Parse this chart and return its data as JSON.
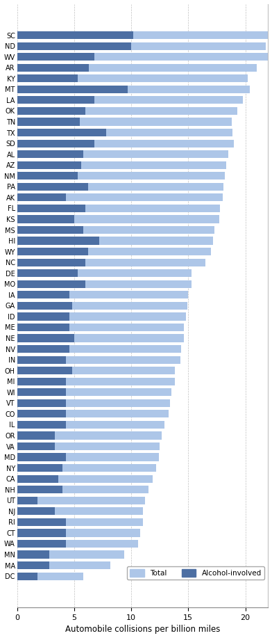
{
  "states": [
    "SC",
    "ND",
    "WV",
    "AR",
    "KY",
    "MT",
    "LA",
    "OK",
    "TN",
    "TX",
    "SD",
    "AL",
    "AZ",
    "NM",
    "PA",
    "AK",
    "FL",
    "KS",
    "MS",
    "HI",
    "WY",
    "NC",
    "DE",
    "MO",
    "IA",
    "GA",
    "ID",
    "ME",
    "NE",
    "NV",
    "IN",
    "OH",
    "MI",
    "WI",
    "VT",
    "CO",
    "IL",
    "OR",
    "VA",
    "MD",
    "NY",
    "CA",
    "NH",
    "UT",
    "NJ",
    "RI",
    "CT",
    "WA",
    "MN",
    "MA",
    "DC"
  ],
  "total": [
    22.0,
    21.8,
    22.2,
    21.0,
    20.2,
    20.4,
    19.8,
    19.3,
    18.8,
    18.9,
    19.0,
    18.5,
    18.3,
    18.2,
    18.1,
    18.0,
    17.8,
    17.7,
    17.3,
    17.2,
    17.0,
    16.5,
    15.3,
    15.3,
    15.0,
    14.9,
    14.8,
    14.6,
    14.6,
    14.4,
    14.3,
    13.8,
    13.8,
    13.5,
    13.4,
    13.3,
    12.9,
    12.7,
    12.5,
    12.4,
    12.2,
    11.9,
    11.5,
    11.2,
    11.0,
    11.0,
    10.8,
    10.6,
    9.4,
    8.2,
    5.8
  ],
  "alcohol": [
    10.2,
    10.0,
    6.8,
    6.3,
    5.3,
    9.7,
    6.8,
    6.0,
    5.5,
    7.8,
    6.8,
    5.8,
    5.6,
    5.3,
    6.2,
    4.3,
    6.0,
    5.0,
    5.8,
    7.2,
    6.2,
    6.0,
    5.3,
    6.0,
    4.6,
    4.8,
    4.6,
    4.6,
    5.0,
    4.6,
    4.3,
    4.8,
    4.3,
    4.3,
    4.3,
    4.3,
    4.3,
    3.3,
    3.3,
    4.3,
    4.0,
    3.6,
    4.0,
    1.8,
    3.3,
    4.3,
    4.3,
    4.3,
    2.8,
    2.8,
    1.8
  ],
  "color_total": "#adc6e8",
  "color_alcohol": "#4d6fa3",
  "xlabel": "Automobile collisions per billion miles",
  "legend_total": "Total",
  "legend_alcohol": "Alcohol-involved",
  "bar_height": 0.72,
  "xlim": [
    0,
    22
  ],
  "xticks": [
    0,
    5,
    10,
    15,
    20
  ],
  "figsize": [
    3.92,
    9.17
  ],
  "dpi": 100
}
